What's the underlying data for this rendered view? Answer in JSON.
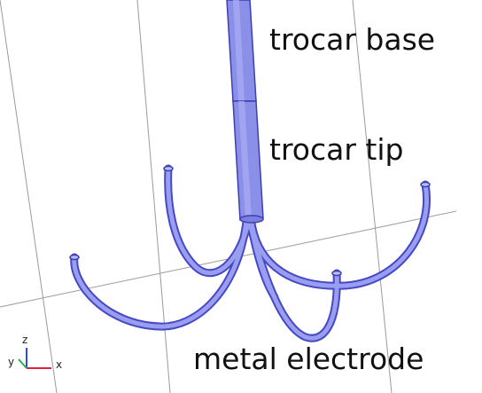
{
  "labels": {
    "trocar_base": "trocar base",
    "trocar_tip": "trocar tip",
    "metal_electrode": "metal electrode"
  },
  "axes": {
    "x": "x",
    "y": "y",
    "z": "z",
    "colors": {
      "x": "#e0223a",
      "y": "#22b14c",
      "z": "#2a4fd6"
    }
  },
  "colors": {
    "grid": "#9a9a9a",
    "trocar_fill": "#8a8fe8",
    "trocar_stroke": "#3c3fb0",
    "electrode_stroke": "#4648c4",
    "electrode_fill": "#9a9ef0"
  }
}
